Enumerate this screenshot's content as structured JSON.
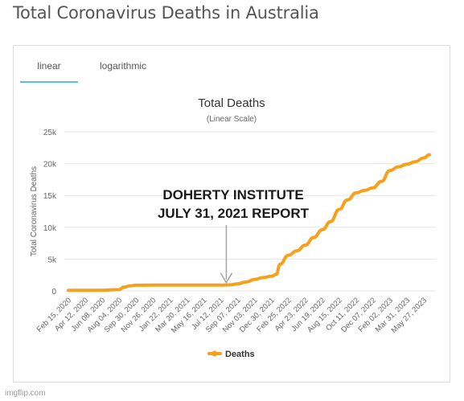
{
  "page": {
    "title": "Total Coronavirus Deaths in Australia",
    "watermark": "imgflip.com"
  },
  "tabs": [
    {
      "label": "linear",
      "active": true
    },
    {
      "label": "logarithmic",
      "active": false
    }
  ],
  "colors": {
    "series": "#f5a11c",
    "grid": "#e6e6e6",
    "axis_text": "#666666",
    "tab_active": "#5bc0de",
    "annotation_arrow": "#a7a7a7"
  },
  "chart_data": {
    "type": "line",
    "title": "Total Deaths",
    "subtitle": "(Linear Scale)",
    "xlabel": "",
    "ylabel": "Total Coronavirus Deaths",
    "ylim": [
      0,
      25000
    ],
    "yticks": [
      0,
      5000,
      10000,
      15000,
      20000,
      25000
    ],
    "ytick_labels": [
      "0",
      "5k",
      "10k",
      "15k",
      "20k",
      "25k"
    ],
    "xtick_labels": [
      "Feb 15, 2020",
      "Apr 12, 2020",
      "Jun 08, 2020",
      "Aug 04, 2020",
      "Sep 30, 2020",
      "Nov 26, 2020",
      "Jan 22, 2021",
      "Mar 20, 2021",
      "May 16, 2021",
      "Jul 12, 2021",
      "Sep 07, 2021",
      "Nov 03, 2021",
      "Dec 30, 2021",
      "Feb 25, 2022",
      "Apr 23, 2022",
      "Jun 19, 2022",
      "Aug 15, 2022",
      "Oct 11, 2022",
      "Dec 07, 2022",
      "Feb 02, 2023",
      "Mar 31, 2023",
      "May 27, 2023"
    ],
    "grid": true,
    "legend": "bottom-center",
    "series": [
      {
        "name": "Deaths",
        "x": [
          "Feb 15, 2020",
          "Apr 12, 2020",
          "Jun 08, 2020",
          "Aug 04, 2020",
          "Aug 20, 2020",
          "Sep 10, 2020",
          "Sep 30, 2020",
          "Nov 26, 2020",
          "Jan 22, 2021",
          "Mar 20, 2021",
          "May 16, 2021",
          "Jul 12, 2021",
          "Aug 10, 2021",
          "Sep 07, 2021",
          "Oct 05, 2021",
          "Nov 03, 2021",
          "Dec 01, 2021",
          "Dec 30, 2021",
          "Jan 15, 2022",
          "Jan 28, 2022",
          "Feb 25, 2022",
          "Mar 25, 2022",
          "Apr 23, 2022",
          "May 21, 2022",
          "Jun 19, 2022",
          "Jul 17, 2022",
          "Aug 15, 2022",
          "Sep 12, 2022",
          "Oct 11, 2022",
          "Nov 08, 2022",
          "Dec 07, 2022",
          "Jan 04, 2023",
          "Feb 02, 2023",
          "Mar 02, 2023",
          "Mar 31, 2023",
          "Apr 28, 2023",
          "May 27, 2023",
          "Jun 15, 2023"
        ],
        "y": [
          100,
          100,
          102,
          200,
          600,
          800,
          900,
          908,
          909,
          910,
          912,
          915,
          950,
          1100,
          1400,
          1800,
          2100,
          2300,
          2600,
          4200,
          5600,
          6300,
          7200,
          8400,
          9600,
          10900,
          12800,
          14300,
          15400,
          15800,
          16200,
          17200,
          18900,
          19500,
          19900,
          20300,
          20900,
          21400
        ]
      }
    ],
    "annotations": [
      {
        "text_lines": [
          "DOHERTY INSTITUTE",
          "JULY 31, 2021 REPORT"
        ],
        "x": "Jul 31, 2021"
      }
    ]
  }
}
